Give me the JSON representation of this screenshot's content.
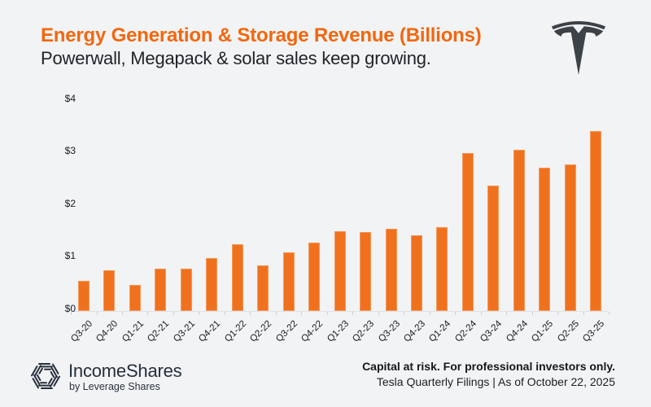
{
  "header": {
    "title": "Energy Generation & Storage Revenue (Billions)",
    "subtitle": "Powerwall, Megapack & solar sales keep growing."
  },
  "chart_data": {
    "type": "bar",
    "title": "Energy Generation & Storage Revenue (Billions)",
    "unit": "USD billions",
    "categories": [
      "Q3-20",
      "Q4-20",
      "Q1-21",
      "Q2-21",
      "Q3-21",
      "Q4-21",
      "Q1-22",
      "Q2-22",
      "Q3-22",
      "Q4-22",
      "Q1-23",
      "Q2-23",
      "Q3-23",
      "Q4-23",
      "Q1-24",
      "Q2-24",
      "Q3-24",
      "Q4-24",
      "Q1-25",
      "Q2-25",
      "Q3-25"
    ],
    "values": [
      0.58,
      0.78,
      0.49,
      0.8,
      0.81,
      1.0,
      1.27,
      0.87,
      1.11,
      1.3,
      1.52,
      1.5,
      1.56,
      1.44,
      1.6,
      3.0,
      2.38,
      3.06,
      2.72,
      2.79,
      3.42
    ],
    "xlabel": "",
    "ylabel": "",
    "y_ticks": [
      "$0",
      "$1",
      "$2",
      "$3",
      "$4"
    ],
    "y_tick_values": [
      0,
      1,
      2,
      3,
      4
    ],
    "ylim": [
      0,
      4
    ],
    "grid": false,
    "legend": "none",
    "bar_color": "#f0711d"
  },
  "icons": {
    "brand_mark": "tesla-logo-icon",
    "footer_mark": "incomeshares-logo-icon"
  },
  "colors": {
    "background": "#f2f3f5",
    "title_orange": "#f2670e",
    "bar_orange": "#f0711d",
    "dark_text": "#1f2227",
    "tesla_gray": "#3d4247",
    "footer_navy": "#262f3a",
    "axis_gray": "#dfe1e4"
  },
  "footer": {
    "brand": "IncomeShares",
    "byline": "by Leverage Shares",
    "disclaimer": "Capital at risk. For professional investors only.",
    "source": "Tesla Quarterly Filings | As of October 22, 2025"
  }
}
